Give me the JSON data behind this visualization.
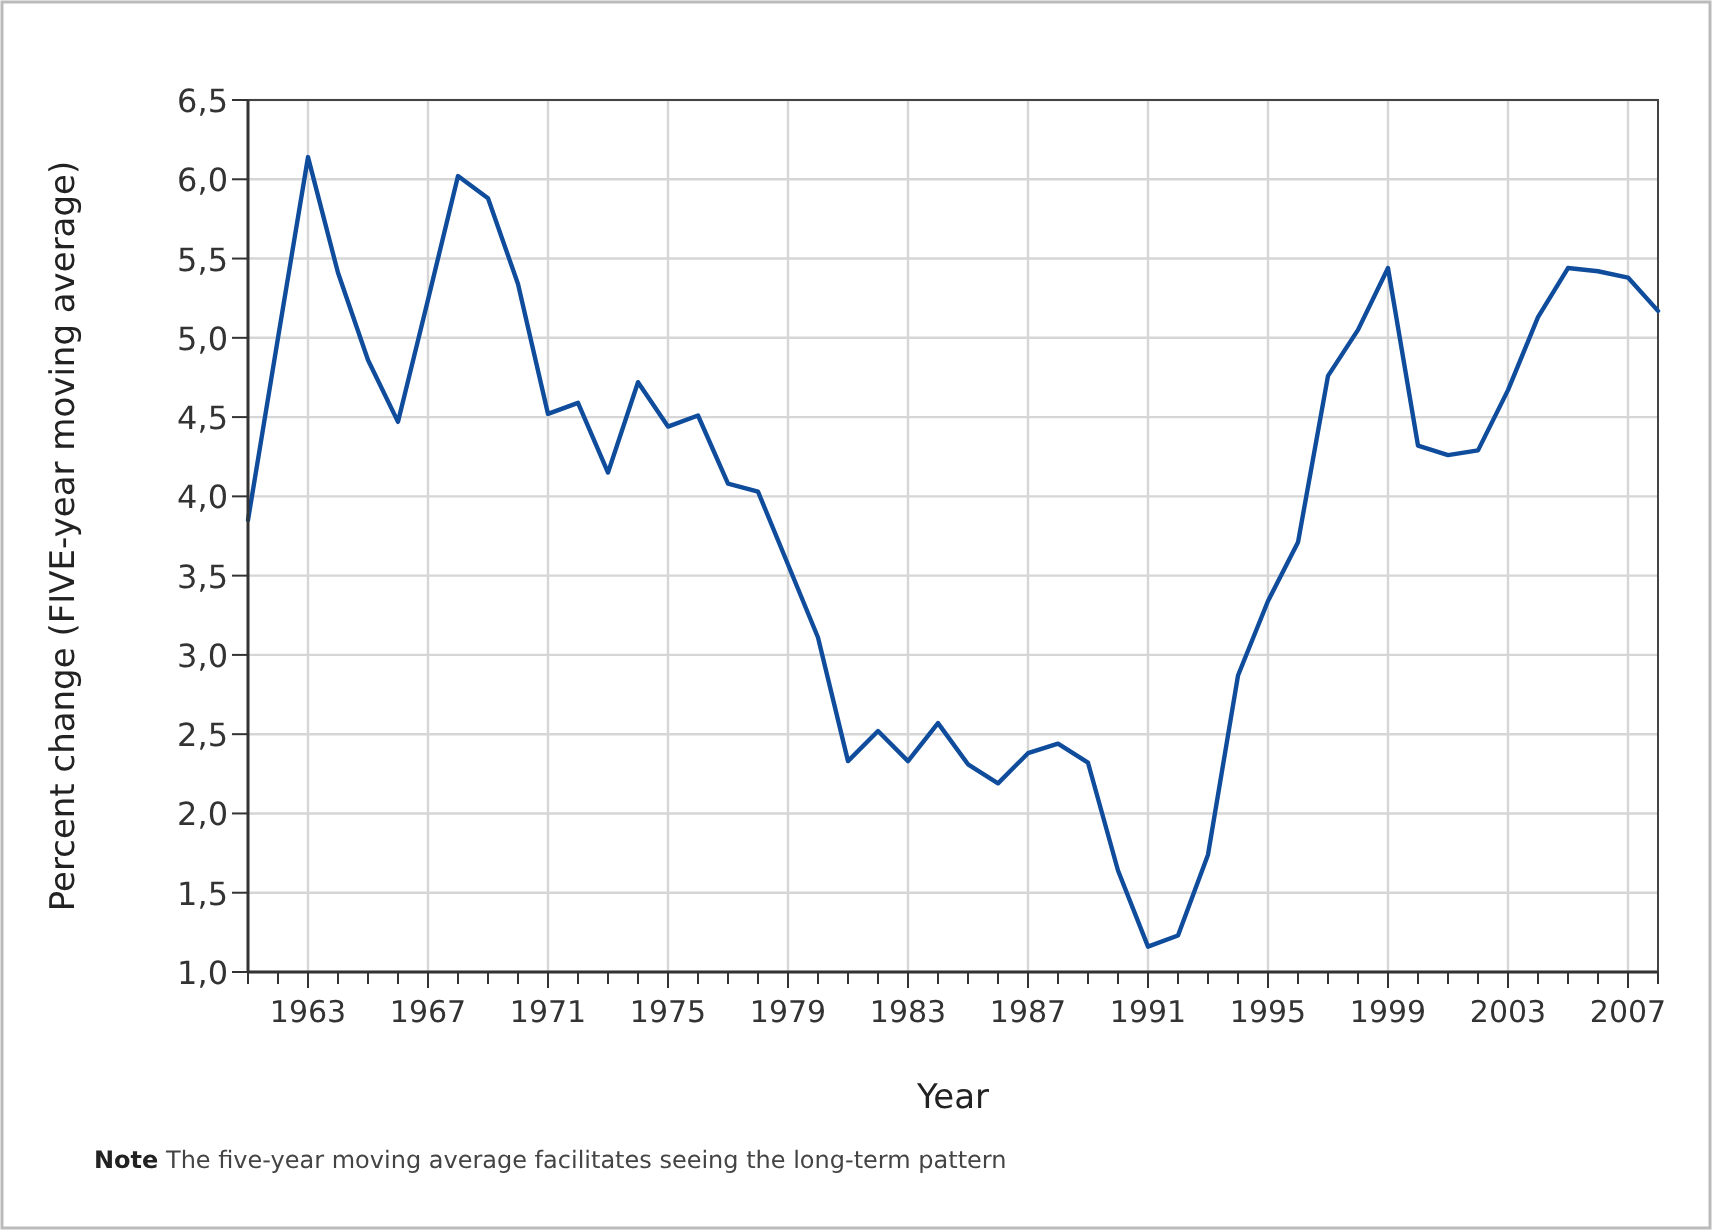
{
  "chart_data": {
    "type": "line",
    "xlabel": "Year",
    "ylabel": "Percent change (FIVE-year moving average)",
    "annotations": [
      "Note The five-year moving average facilitates seeing the long-term pattern"
    ],
    "x": [
      1961,
      1962,
      1963,
      1964,
      1965,
      1966,
      1967,
      1968,
      1969,
      1970,
      1971,
      1972,
      1973,
      1974,
      1975,
      1976,
      1977,
      1978,
      1979,
      1980,
      1981,
      1982,
      1983,
      1984,
      1985,
      1986,
      1987,
      1988,
      1989,
      1990,
      1991,
      1992,
      1993,
      1994,
      1995,
      1996,
      1997,
      1998,
      1999,
      2000,
      2001,
      2002,
      2003,
      2004,
      2005,
      2006,
      2007,
      2008
    ],
    "series": [
      {
        "color": "#0f4c9c",
        "values": [
          3.85,
          5.0,
          6.14,
          5.41,
          4.86,
          4.47,
          5.24,
          6.02,
          5.88,
          5.34,
          4.52,
          4.59,
          4.15,
          4.72,
          4.44,
          4.51,
          4.08,
          4.03,
          3.57,
          3.11,
          2.33,
          2.52,
          2.33,
          2.57,
          2.31,
          2.19,
          2.38,
          2.44,
          2.32,
          1.64,
          1.16,
          1.23,
          1.74,
          2.87,
          3.34,
          3.71,
          4.76,
          5.05,
          5.44,
          4.32,
          4.26,
          4.29,
          4.67,
          5.13,
          5.44,
          5.42,
          5.38,
          5.17
        ]
      }
    ],
    "xlim": [
      1961,
      2008
    ],
    "xticks": [
      {
        "value": 1961,
        "label": null
      },
      {
        "value": 1962,
        "label": null
      },
      1963,
      {
        "value": 1964,
        "label": null
      },
      {
        "value": 1965,
        "label": null
      },
      {
        "value": 1966,
        "label": null
      },
      1967,
      {
        "value": 1968,
        "label": null
      },
      {
        "value": 1969,
        "label": null
      },
      {
        "value": 1970,
        "label": null
      },
      1971,
      {
        "value": 1972,
        "label": null
      },
      {
        "value": 1973,
        "label": null
      },
      {
        "value": 1974,
        "label": null
      },
      1975,
      {
        "value": 1976,
        "label": null
      },
      {
        "value": 1977,
        "label": null
      },
      {
        "value": 1978,
        "label": null
      },
      1979,
      {
        "value": 1980,
        "label": null
      },
      {
        "value": 1981,
        "label": null
      },
      {
        "value": 1982,
        "label": null
      },
      1983,
      {
        "value": 1984,
        "label": null
      },
      {
        "value": 1985,
        "label": null
      },
      {
        "value": 1986,
        "label": null
      },
      1987,
      {
        "value": 1988,
        "label": null
      },
      {
        "value": 1989,
        "label": null
      },
      {
        "value": 1990,
        "label": null
      },
      1991,
      {
        "value": 1992,
        "label": null
      },
      {
        "value": 1993,
        "label": null
      },
      {
        "value": 1994,
        "label": null
      },
      1995,
      {
        "value": 1996,
        "label": null
      },
      {
        "value": 1997,
        "label": null
      },
      {
        "value": 1998,
        "label": null
      },
      1999,
      {
        "value": 2000,
        "label": null
      },
      {
        "value": 2001,
        "label": null
      },
      {
        "value": 2002,
        "label": null
      },
      2003,
      {
        "value": 2004,
        "label": null
      },
      {
        "value": 2005,
        "label": null
      },
      {
        "value": 2006,
        "label": null
      },
      2007,
      {
        "value": 2008,
        "label": null
      }
    ],
    "ylim": [
      1.0,
      6.5
    ],
    "yticks": [
      {
        "value": 1.0,
        "label": "1,0"
      },
      {
        "value": 1.5,
        "label": "1,5"
      },
      {
        "value": 2.0,
        "label": "2,0"
      },
      {
        "value": 2.5,
        "label": "2,5"
      },
      {
        "value": 3.0,
        "label": "3,0"
      },
      {
        "value": 3.5,
        "label": "3,5"
      },
      {
        "value": 4.0,
        "label": "4,0"
      },
      {
        "value": 4.5,
        "label": "4,5"
      },
      {
        "value": 5.0,
        "label": "5,0"
      },
      {
        "value": 5.5,
        "label": "5,5"
      },
      {
        "value": 6.0,
        "label": "6,0"
      },
      {
        "value": 6.5,
        "label": "6,5"
      }
    ],
    "grid": true,
    "marker": "none",
    "line_style": "solid"
  }
}
